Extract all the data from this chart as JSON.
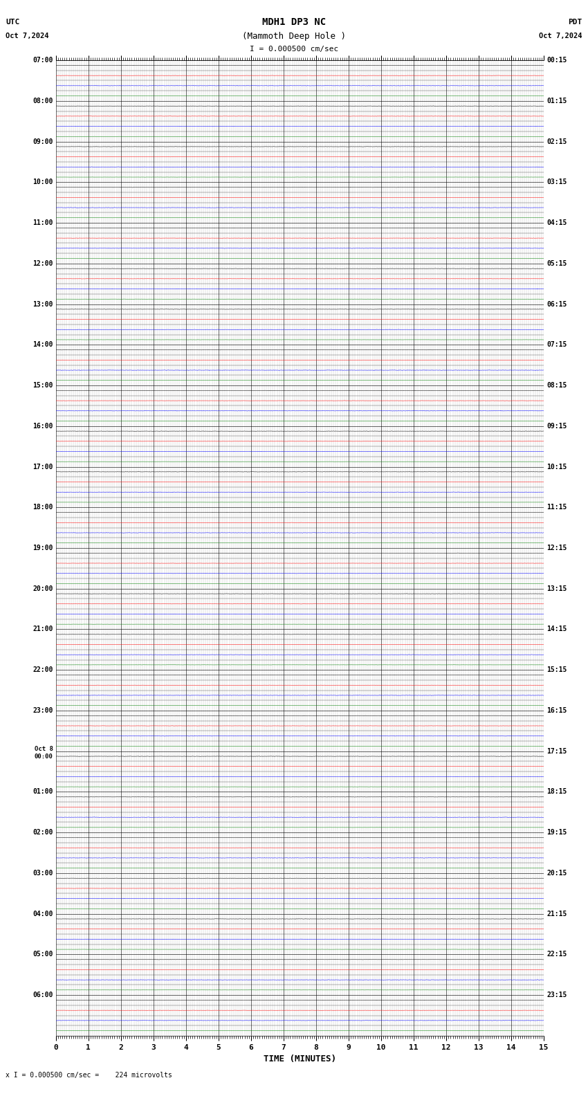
{
  "title_line1": "MDH1 DP3 NC",
  "title_line2": "(Mammoth Deep Hole )",
  "scale_text": "I = 0.000500 cm/sec",
  "utc_label": "UTC",
  "utc_date": "Oct 7,2024",
  "pdt_label": "PDT",
  "pdt_date": "Oct 7,2024",
  "bottom_label": "x I = 0.000500 cm/sec =    224 microvolts",
  "xlabel": "TIME (MINUTES)",
  "left_times": [
    "07:00",
    "08:00",
    "09:00",
    "10:00",
    "11:00",
    "12:00",
    "13:00",
    "14:00",
    "15:00",
    "16:00",
    "17:00",
    "18:00",
    "19:00",
    "20:00",
    "21:00",
    "22:00",
    "23:00",
    "Oct 8|00:00",
    "01:00",
    "02:00",
    "03:00",
    "04:00",
    "05:00",
    "06:00"
  ],
  "right_times": [
    "00:15",
    "01:15",
    "02:15",
    "03:15",
    "04:15",
    "05:15",
    "06:15",
    "07:15",
    "08:15",
    "09:15",
    "10:15",
    "11:15",
    "12:15",
    "13:15",
    "14:15",
    "15:15",
    "16:15",
    "17:15",
    "18:15",
    "19:15",
    "20:15",
    "21:15",
    "22:15",
    "23:15"
  ],
  "n_rows": 24,
  "traces_per_row": 4,
  "trace_colors": [
    "black",
    "red",
    "blue",
    "green"
  ],
  "background_color": "white",
  "noise_amp_black": 0.025,
  "noise_amp_red": 0.018,
  "noise_amp_blue": 0.03,
  "noise_amp_green": 0.012,
  "figsize": [
    8.5,
    15.84
  ],
  "dpi": 100,
  "minutes": 15
}
